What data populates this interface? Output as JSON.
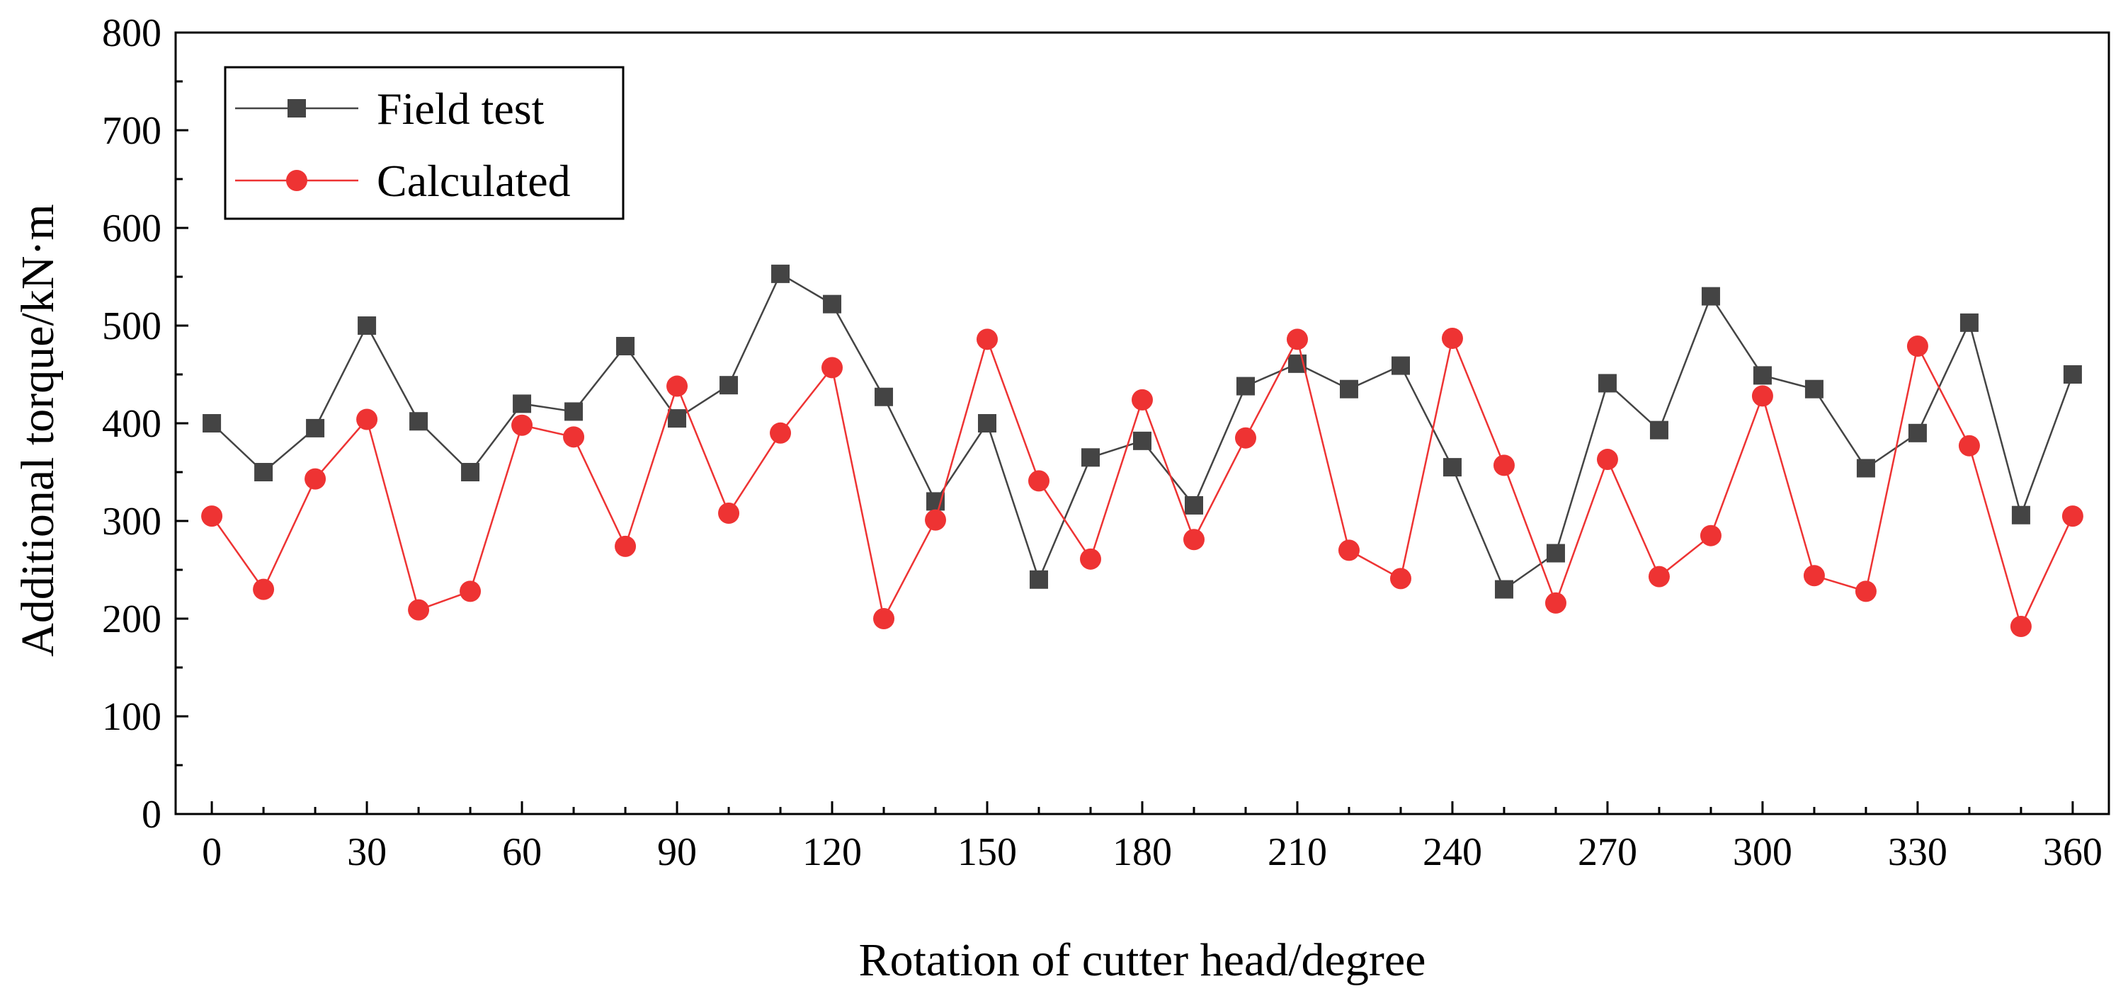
{
  "chart_data": {
    "type": "line",
    "title": "",
    "xlabel": "Rotation of cutter head/degree",
    "ylabel": "Additional torque/kN·m",
    "xlim": [
      -7,
      367
    ],
    "ylim": [
      0,
      800
    ],
    "xticks": [
      0,
      30,
      60,
      90,
      120,
      150,
      180,
      210,
      240,
      270,
      300,
      330,
      360
    ],
    "yticks": [
      0,
      100,
      200,
      300,
      400,
      500,
      600,
      700,
      800
    ],
    "legend_position": "top-left",
    "x": [
      0,
      10,
      20,
      30,
      40,
      50,
      60,
      70,
      80,
      90,
      100,
      110,
      120,
      130,
      140,
      150,
      160,
      170,
      180,
      190,
      200,
      210,
      220,
      230,
      240,
      250,
      260,
      270,
      280,
      290,
      300,
      310,
      320,
      330,
      340,
      350,
      360
    ],
    "series": [
      {
        "name": "Field test",
        "color": "#444444",
        "marker": "square",
        "values": [
          400,
          350,
          395,
          500,
          402,
          350,
          420,
          412,
          479,
          405,
          439,
          553,
          522,
          427,
          320,
          400,
          240,
          365,
          382,
          316,
          438,
          461,
          435,
          459,
          355,
          230,
          267,
          441,
          393,
          530,
          449,
          435,
          354,
          390,
          503,
          306,
          450
        ]
      },
      {
        "name": "Calculated",
        "color": "#ee3333",
        "marker": "circle",
        "values": [
          305,
          230,
          343,
          404,
          209,
          228,
          398,
          386,
          274,
          438,
          308,
          390,
          457,
          200,
          301,
          486,
          341,
          261,
          424,
          281,
          385,
          486,
          270,
          241,
          487,
          357,
          216,
          363,
          243,
          285,
          428,
          244,
          228,
          479,
          377,
          192,
          305
        ]
      }
    ]
  }
}
